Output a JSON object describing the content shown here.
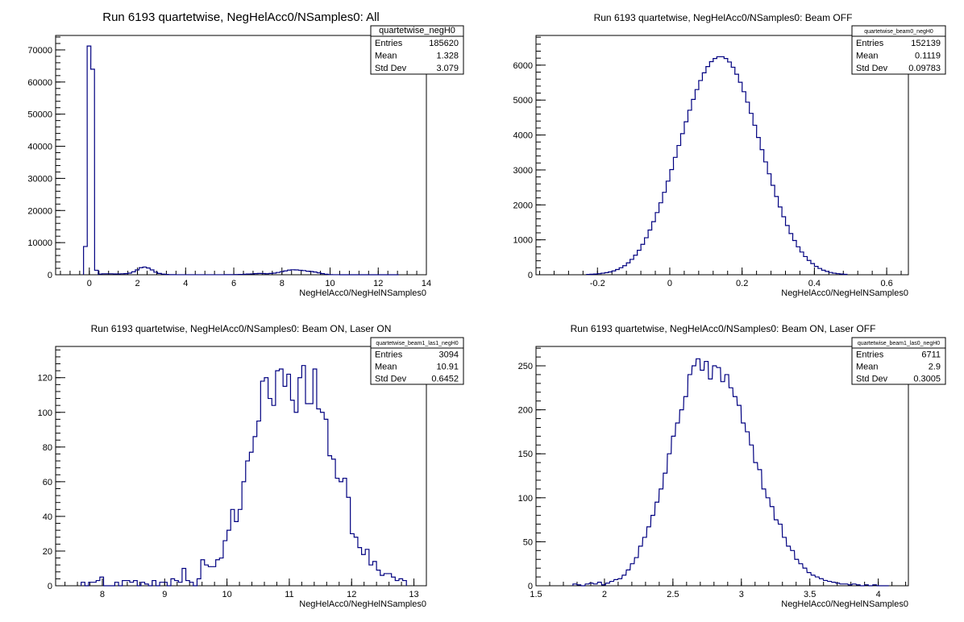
{
  "chart_data": [
    {
      "type": "bar",
      "title": "Run 6193 quartetwise, NegHelAcc0/NSamples0: All",
      "xlabel": "NegHelAcc0/NegHelNSamples0",
      "ylabel": "",
      "xlim": [
        -1.4,
        14
      ],
      "ylim": [
        0,
        74500
      ],
      "xticks": [
        0,
        2,
        4,
        6,
        8,
        10,
        12,
        14
      ],
      "yticks": [
        0,
        10000,
        20000,
        30000,
        40000,
        50000,
        60000,
        70000
      ],
      "grid": false,
      "stats": {
        "name": "quartetwise_negH0",
        "entries": "185620",
        "mean": "1.328",
        "std_dev": "3.079"
      },
      "bin_width": 0.154,
      "bins_x": [
        -0.24,
        -0.09,
        0.06,
        0.22,
        0.37,
        0.52,
        0.68,
        0.83,
        0.99,
        1.14,
        1.3,
        1.45,
        1.6,
        1.76,
        1.91,
        2.07,
        2.22,
        2.37,
        2.53,
        2.68,
        2.84,
        2.99,
        3.14,
        3.3,
        3.45,
        3.61,
        3.76,
        3.91,
        4.07,
        4.22,
        4.38,
        4.53,
        4.68,
        4.84,
        4.99,
        5.15,
        5.3,
        5.45,
        5.61,
        5.76,
        5.92,
        6.07,
        6.22,
        6.38,
        6.53,
        6.69,
        6.84,
        6.99,
        7.15,
        7.3,
        7.46,
        7.61,
        7.76,
        7.92,
        8.07,
        8.23,
        8.38,
        8.53,
        8.69,
        8.84,
        9.0,
        9.15,
        9.3,
        9.46,
        9.61,
        9.77,
        9.92,
        10.07,
        10.23,
        10.38,
        10.54,
        10.69,
        10.84,
        11.0,
        11.15,
        11.31,
        11.46,
        11.61,
        11.77,
        11.92,
        12.08,
        12.23,
        12.38,
        12.54,
        12.69
      ],
      "values": [
        8800,
        71200,
        64000,
        1400,
        200,
        300,
        300,
        300,
        250,
        250,
        300,
        350,
        500,
        900,
        1500,
        2200,
        2400,
        2100,
        1500,
        800,
        400,
        200,
        100,
        50,
        30,
        20,
        20,
        20,
        20,
        20,
        20,
        20,
        20,
        20,
        20,
        20,
        20,
        20,
        30,
        40,
        50,
        80,
        110,
        160,
        210,
        270,
        350,
        400,
        380,
        320,
        400,
        500,
        700,
        950,
        1200,
        1450,
        1550,
        1500,
        1400,
        1300,
        1100,
        1000,
        850,
        600,
        350,
        150,
        50,
        20,
        10,
        5,
        5,
        5,
        5,
        5,
        5,
        5,
        5,
        5,
        5,
        5,
        5,
        5,
        5,
        5,
        5
      ]
    },
    {
      "type": "bar",
      "title": "Run 6193 quartetwise, NegHelAcc0/NSamples0: Beam OFF",
      "xlabel": "NegHelAcc0/NegHelNSamples0",
      "ylabel": "",
      "xlim": [
        -0.37,
        0.66
      ],
      "ylim": [
        0,
        6850
      ],
      "xticks": [
        -0.2,
        0,
        0.2,
        0.4,
        0.6
      ],
      "yticks": [
        0,
        1000,
        2000,
        3000,
        4000,
        5000,
        6000
      ],
      "grid": false,
      "stats": {
        "name": "quartetwise_beam0_negH0",
        "entries": "152139",
        "mean": "0.1119",
        "std_dev": "0.09783"
      },
      "bin_width": 0.0103,
      "bins_x": [
        -0.23,
        -0.22,
        -0.21,
        -0.2,
        -0.19,
        -0.18,
        -0.17,
        -0.16,
        -0.15,
        -0.14,
        -0.13,
        -0.12,
        -0.11,
        -0.1,
        -0.09,
        -0.08,
        -0.07,
        -0.06,
        -0.05,
        -0.04,
        -0.03,
        -0.02,
        -0.01,
        0,
        0.01,
        0.02,
        0.03,
        0.04,
        0.05,
        0.06,
        0.07,
        0.08,
        0.09,
        0.1,
        0.11,
        0.12,
        0.13,
        0.14,
        0.15,
        0.16,
        0.17,
        0.18,
        0.19,
        0.2,
        0.21,
        0.22,
        0.23,
        0.24,
        0.25,
        0.26,
        0.27,
        0.28,
        0.29,
        0.3,
        0.31,
        0.32,
        0.33,
        0.34,
        0.35,
        0.36,
        0.37,
        0.38,
        0.39,
        0.4,
        0.41,
        0.42,
        0.43,
        0.44,
        0.45,
        0.46,
        0.47,
        0.48
      ],
      "values": [
        10,
        15,
        20,
        30,
        45,
        60,
        80,
        110,
        150,
        200,
        260,
        340,
        440,
        560,
        700,
        870,
        1060,
        1280,
        1520,
        1780,
        2060,
        2360,
        2680,
        3010,
        3360,
        3700,
        4040,
        4380,
        4710,
        5020,
        5300,
        5560,
        5780,
        5960,
        6100,
        6190,
        6240,
        6240,
        6190,
        6090,
        5940,
        5740,
        5510,
        5240,
        4940,
        4620,
        4280,
        3930,
        3580,
        3230,
        2890,
        2560,
        2240,
        1940,
        1660,
        1410,
        1180,
        980,
        800,
        650,
        520,
        410,
        320,
        240,
        180,
        130,
        95,
        65,
        45,
        30,
        20,
        12
      ]
    },
    {
      "type": "bar",
      "title": "Run 6193 quartetwise, NegHelAcc0/NSamples0: Beam ON, Laser ON",
      "xlabel": "NegHelAcc0/NegHelNSamples0",
      "ylabel": "",
      "xlim": [
        7.25,
        13.2
      ],
      "ylim": [
        0,
        138
      ],
      "xticks": [
        8,
        9,
        10,
        11,
        12,
        13
      ],
      "yticks": [
        0,
        20,
        40,
        60,
        80,
        100,
        120
      ],
      "grid": false,
      "stats": {
        "name": "quartetwise_beam1_las1_negH0",
        "entries": "3094",
        "mean": "10.91",
        "std_dev": "0.6452"
      },
      "bin_width": 0.0594,
      "bins_x": [
        7.66,
        7.72,
        7.78,
        7.84,
        7.9,
        7.96,
        8.02,
        8.08,
        8.14,
        8.2,
        8.26,
        8.32,
        8.38,
        8.44,
        8.5,
        8.56,
        8.62,
        8.68,
        8.74,
        8.8,
        8.86,
        8.92,
        8.98,
        9.04,
        9.1,
        9.16,
        9.22,
        9.28,
        9.34,
        9.4,
        9.46,
        9.52,
        9.58,
        9.64,
        9.7,
        9.76,
        9.82,
        9.88,
        9.94,
        10.0,
        10.06,
        10.12,
        10.18,
        10.24,
        10.3,
        10.36,
        10.42,
        10.48,
        10.54,
        10.6,
        10.66,
        10.72,
        10.78,
        10.84,
        10.9,
        10.96,
        11.02,
        11.08,
        11.14,
        11.2,
        11.26,
        11.32,
        11.38,
        11.44,
        11.5,
        11.56,
        11.62,
        11.68,
        11.74,
        11.8,
        11.86,
        11.92,
        11.98,
        12.04,
        12.1,
        12.16,
        12.22,
        12.28,
        12.34,
        12.4,
        12.46,
        12.52,
        12.58,
        12.64,
        12.7,
        12.76,
        12.82
      ],
      "values": [
        2,
        0,
        2,
        2,
        3,
        5,
        0,
        0,
        0,
        2,
        0,
        3,
        3,
        2,
        3,
        0,
        2,
        1,
        0,
        3,
        0,
        2,
        2,
        0,
        4,
        3,
        2,
        10,
        3,
        2,
        0,
        4,
        15,
        12,
        11,
        11,
        15,
        16,
        26,
        32,
        44,
        37,
        44,
        60,
        72,
        77,
        86,
        95,
        118,
        120,
        108,
        104,
        124,
        125,
        115,
        122,
        107,
        100,
        120,
        127,
        105,
        105,
        125,
        102,
        100,
        96,
        75,
        73,
        62,
        60,
        62,
        51,
        30,
        28,
        22,
        18,
        21,
        12,
        14,
        9,
        6,
        7,
        7,
        5,
        3,
        4,
        3
      ]
    },
    {
      "type": "bar",
      "title": "Run 6193 quartetwise, NegHelAcc0/NSamples0: Beam ON, Laser OFF",
      "xlabel": "NegHelAcc0/NegHelNSamples0",
      "ylabel": "",
      "xlim": [
        1.5,
        4.22
      ],
      "ylim": [
        0,
        272
      ],
      "xticks": [
        1.5,
        2,
        2.5,
        3,
        3.5,
        4
      ],
      "yticks": [
        0,
        50,
        100,
        150,
        200,
        250
      ],
      "grid": false,
      "stats": {
        "name": "quartetwise_beam1_las0_negH0",
        "entries": "6711",
        "mean": "2.9",
        "std_dev": "0.3005"
      },
      "bin_width": 0.0272,
      "bins_x": [
        1.77,
        1.8,
        1.83,
        1.86,
        1.89,
        1.92,
        1.95,
        1.98,
        2.01,
        2.04,
        2.07,
        2.1,
        2.13,
        2.16,
        2.19,
        2.22,
        2.25,
        2.28,
        2.31,
        2.34,
        2.37,
        2.4,
        2.43,
        2.46,
        2.49,
        2.52,
        2.55,
        2.58,
        2.61,
        2.64,
        2.67,
        2.7,
        2.73,
        2.76,
        2.79,
        2.82,
        2.85,
        2.88,
        2.91,
        2.94,
        2.97,
        3.0,
        3.03,
        3.06,
        3.09,
        3.12,
        3.15,
        3.18,
        3.21,
        3.24,
        3.27,
        3.3,
        3.33,
        3.36,
        3.39,
        3.42,
        3.45,
        3.48,
        3.51,
        3.54,
        3.57,
        3.6,
        3.63,
        3.66,
        3.69,
        3.72,
        3.75,
        3.78,
        3.81,
        3.84,
        3.87,
        3.9,
        3.93,
        3.96,
        3.99,
        4.02,
        4.05
      ],
      "values": [
        2,
        1,
        0,
        2,
        3,
        2,
        4,
        1,
        3,
        5,
        7,
        8,
        12,
        18,
        25,
        32,
        45,
        55,
        67,
        80,
        95,
        110,
        128,
        150,
        170,
        185,
        200,
        215,
        240,
        250,
        258,
        245,
        255,
        235,
        250,
        248,
        232,
        240,
        225,
        215,
        205,
        185,
        175,
        160,
        140,
        132,
        110,
        100,
        90,
        75,
        70,
        55,
        45,
        40,
        30,
        25,
        20,
        15,
        12,
        10,
        8,
        6,
        5,
        4,
        3,
        2,
        2,
        1,
        2,
        1,
        0,
        1,
        0,
        1,
        0,
        0,
        0
      ]
    }
  ]
}
